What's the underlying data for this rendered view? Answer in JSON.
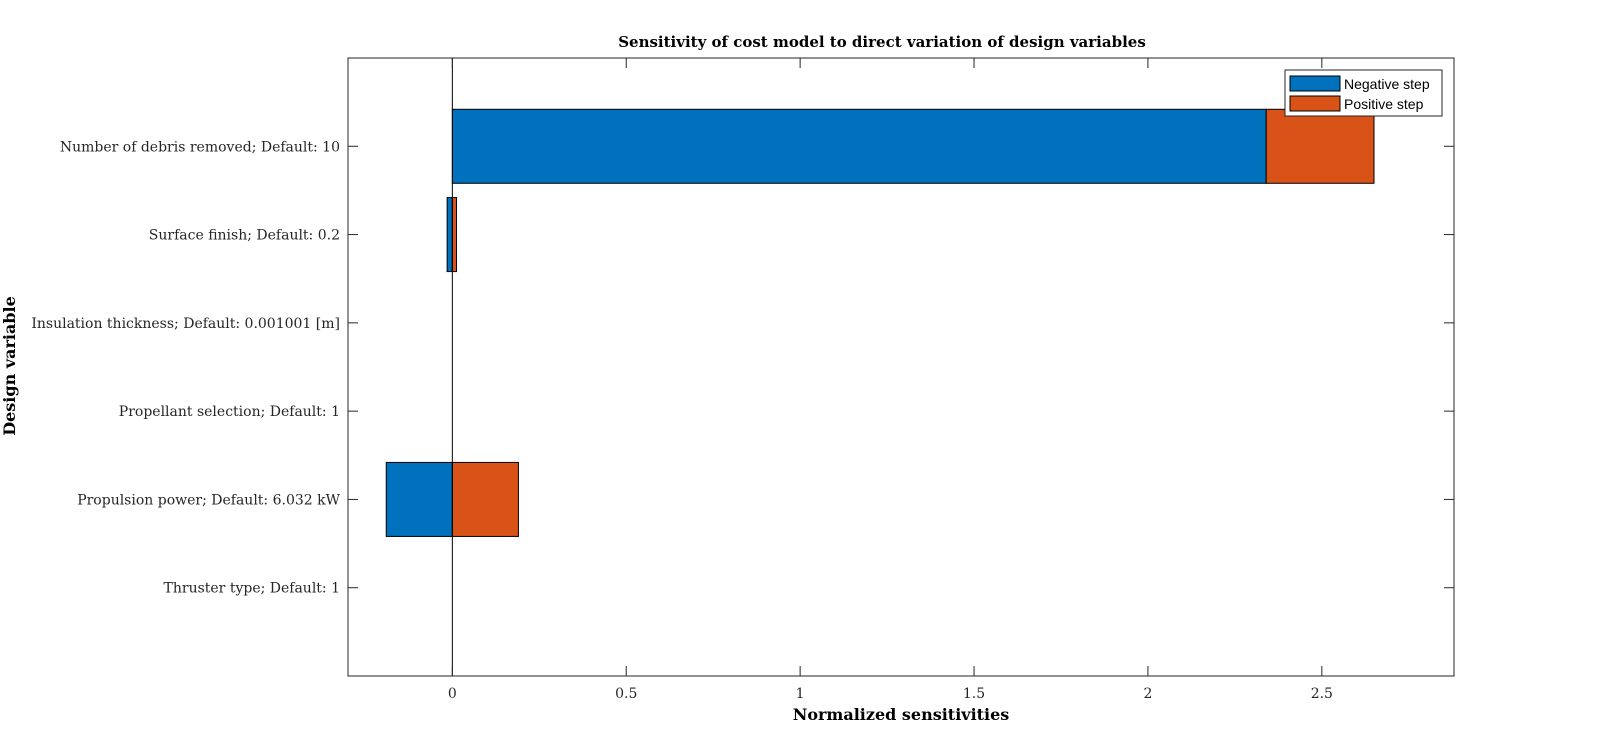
{
  "chart_data": {
    "type": "bar",
    "orientation": "horizontal",
    "stacked": true,
    "title": "Sensitivity of cost model to direct variation of design variables",
    "xlabel": "Normalized sensitivities",
    "ylabel": "Design variable",
    "xlim": [
      -0.3,
      2.88
    ],
    "xticks": [
      0,
      0.5,
      1,
      1.5,
      2,
      2.5
    ],
    "xtick_labels": [
      "0",
      "0.5",
      "1",
      "1.5",
      "2",
      "2.5"
    ],
    "categories": [
      "Number of debris removed; Default: 10",
      "Surface finish; Default: 0.2",
      "Insulation thickness; Default: 0.001001 [m]",
      "Propellant selection; Default: 1",
      "Propulsion power; Default: 6.032 kW",
      "Thruster type; Default: 1"
    ],
    "series": [
      {
        "name": "Negative step",
        "color": "#0072BD",
        "start": [
          0,
          -0.015,
          0,
          0,
          -0.19,
          0
        ],
        "end": [
          2.34,
          0.0,
          0,
          0,
          0,
          0
        ]
      },
      {
        "name": "Positive step",
        "color": "#D95319",
        "start": [
          2.34,
          0.0,
          0,
          0,
          0,
          0
        ],
        "end": [
          2.65,
          0.012,
          0,
          0,
          0.19,
          0
        ]
      }
    ],
    "grid": false,
    "legend_position": "top-right"
  }
}
